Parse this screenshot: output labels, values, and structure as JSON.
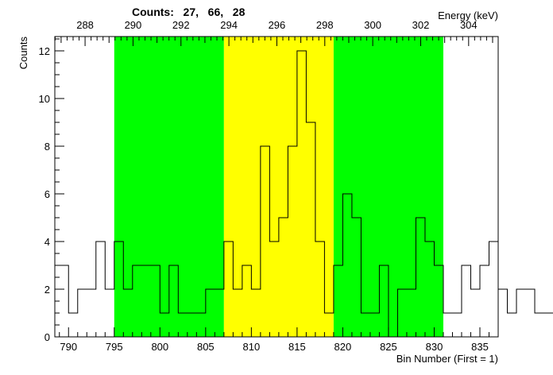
{
  "chart_data": {
    "type": "histogram",
    "title": "Counts:   27,   66,   28",
    "xlabel": "Bin Number (First = 1)",
    "ylabel": "Counts",
    "x2label": "Energy (keV)",
    "xlim": [
      788.5,
      837
    ],
    "ylim": [
      0,
      12.6
    ],
    "bin_start": 789,
    "bin_width": 1,
    "values": [
      3,
      1,
      2,
      2,
      4,
      2,
      4,
      2,
      3,
      3,
      3,
      1,
      3,
      1,
      1,
      1,
      2,
      2,
      4,
      2,
      3,
      2,
      8,
      4,
      5,
      8,
      12,
      9,
      4,
      1,
      3,
      6,
      5,
      1,
      1,
      3,
      0,
      2,
      2,
      5,
      4,
      3,
      1,
      1,
      3,
      2,
      3,
      4,
      2,
      1,
      2,
      2,
      1,
      1
    ],
    "regions": [
      {
        "from": 795,
        "to": 807,
        "color": "#00ff00"
      },
      {
        "from": 807,
        "to": 819,
        "color": "#ffff00"
      },
      {
        "from": 819,
        "to": 831,
        "color": "#00ff00"
      }
    ],
    "x_ticks": [
      790,
      795,
      800,
      805,
      810,
      815,
      820,
      825,
      830,
      835
    ],
    "y_ticks": [
      0,
      2,
      4,
      6,
      8,
      10,
      12
    ],
    "energy_axis": {
      "calibration": {
        "bin_a": 790,
        "energy_a": 287.31,
        "bin_b": 835,
        "energy_b": 304.47
      },
      "ticks": [
        288,
        290,
        292,
        294,
        296,
        298,
        300,
        302,
        304
      ]
    },
    "line_color": "#000000",
    "grid": false
  }
}
